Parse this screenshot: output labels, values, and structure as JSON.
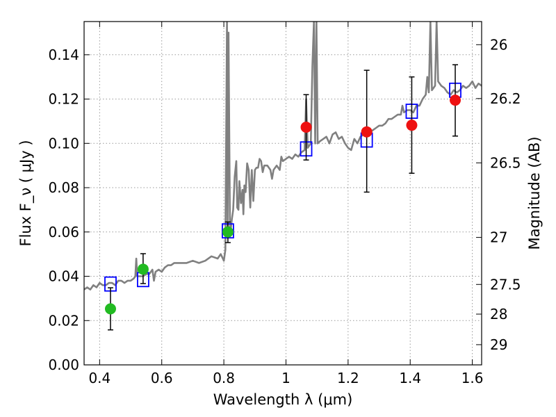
{
  "chart_data": {
    "type": "scatter",
    "xlabel": "Wavelength  λ (μm)",
    "ylabel": "Flux  F_ν  ( μJy )",
    "y2label": "Magnitude (AB)",
    "xlim": [
      0.35,
      1.63
    ],
    "ylim": [
      0.0,
      0.155
    ],
    "xticks": [
      "0.4",
      "0.6",
      "0.8",
      "1",
      "1.2",
      "1.4",
      "1.6"
    ],
    "xtick_values": [
      0.4,
      0.6,
      0.8,
      1.0,
      1.2,
      1.4,
      1.6
    ],
    "yticks": [
      "0.00",
      "0.02",
      "0.04",
      "0.06",
      "0.08",
      "0.10",
      "0.12",
      "0.14"
    ],
    "ytick_values": [
      0.0,
      0.02,
      0.04,
      0.06,
      0.08,
      0.1,
      0.12,
      0.14
    ],
    "y2ticks": [
      {
        "label": "26",
        "mag": 26.0
      },
      {
        "label": "26.2",
        "mag": 26.2
      },
      {
        "label": "26.5",
        "mag": 26.5
      },
      {
        "label": "27",
        "mag": 27.0
      },
      {
        "label": "27.5",
        "mag": 27.5
      },
      {
        "label": "28",
        "mag": 28.0
      },
      {
        "label": "29",
        "mag": 29.0
      }
    ],
    "grid": true,
    "colors": {
      "spectrum": "#808080",
      "model_boxes": "#0000ff",
      "green_points": "#22bb22",
      "red_points": "#ee1111",
      "error_bars": "#000000",
      "grid": "#999999"
    },
    "series": [
      {
        "kind": "line",
        "points": [
          [
            0.35,
            0.034
          ],
          [
            0.36,
            0.035
          ],
          [
            0.37,
            0.034
          ],
          [
            0.38,
            0.036
          ],
          [
            0.39,
            0.035
          ],
          [
            0.4,
            0.037
          ],
          [
            0.41,
            0.036
          ],
          [
            0.42,
            0.036
          ],
          [
            0.43,
            0.037
          ],
          [
            0.44,
            0.037
          ],
          [
            0.45,
            0.036
          ],
          [
            0.46,
            0.038
          ],
          [
            0.47,
            0.038
          ],
          [
            0.48,
            0.037
          ],
          [
            0.49,
            0.038
          ],
          [
            0.5,
            0.038
          ],
          [
            0.51,
            0.039
          ],
          [
            0.515,
            0.04
          ],
          [
            0.518,
            0.048
          ],
          [
            0.521,
            0.04
          ],
          [
            0.53,
            0.04
          ],
          [
            0.54,
            0.04
          ],
          [
            0.55,
            0.041
          ],
          [
            0.56,
            0.041
          ],
          [
            0.57,
            0.043
          ],
          [
            0.575,
            0.038
          ],
          [
            0.58,
            0.042
          ],
          [
            0.59,
            0.043
          ],
          [
            0.6,
            0.042
          ],
          [
            0.61,
            0.044
          ],
          [
            0.62,
            0.045
          ],
          [
            0.63,
            0.045
          ],
          [
            0.64,
            0.046
          ],
          [
            0.66,
            0.046
          ],
          [
            0.68,
            0.046
          ],
          [
            0.7,
            0.047
          ],
          [
            0.72,
            0.046
          ],
          [
            0.74,
            0.047
          ],
          [
            0.76,
            0.049
          ],
          [
            0.78,
            0.048
          ],
          [
            0.79,
            0.05
          ],
          [
            0.8,
            0.047
          ],
          [
            0.805,
            0.052
          ],
          [
            0.81,
            0.155
          ],
          [
            0.812,
            0.06
          ],
          [
            0.815,
            0.15
          ],
          [
            0.82,
            0.058
          ],
          [
            0.826,
            0.066
          ],
          [
            0.83,
            0.07
          ],
          [
            0.835,
            0.085
          ],
          [
            0.84,
            0.092
          ],
          [
            0.843,
            0.071
          ],
          [
            0.847,
            0.07
          ],
          [
            0.85,
            0.083
          ],
          [
            0.855,
            0.073
          ],
          [
            0.86,
            0.079
          ],
          [
            0.863,
            0.068
          ],
          [
            0.866,
            0.081
          ],
          [
            0.87,
            0.078
          ],
          [
            0.875,
            0.091
          ],
          [
            0.88,
            0.088
          ],
          [
            0.885,
            0.071
          ],
          [
            0.89,
            0.088
          ],
          [
            0.895,
            0.074
          ],
          [
            0.9,
            0.088
          ],
          [
            0.905,
            0.089
          ],
          [
            0.91,
            0.089
          ],
          [
            0.915,
            0.093
          ],
          [
            0.92,
            0.092
          ],
          [
            0.925,
            0.087
          ],
          [
            0.93,
            0.09
          ],
          [
            0.94,
            0.09
          ],
          [
            0.95,
            0.088
          ],
          [
            0.955,
            0.084
          ],
          [
            0.96,
            0.088
          ],
          [
            0.97,
            0.09
          ],
          [
            0.98,
            0.088
          ],
          [
            0.985,
            0.094
          ],
          [
            0.99,
            0.092
          ],
          [
            1.0,
            0.093
          ],
          [
            1.01,
            0.094
          ],
          [
            1.02,
            0.093
          ],
          [
            1.03,
            0.095
          ],
          [
            1.04,
            0.094
          ],
          [
            1.05,
            0.096
          ],
          [
            1.06,
            0.097
          ],
          [
            1.065,
            0.12
          ],
          [
            1.07,
            0.098
          ],
          [
            1.08,
            0.1
          ],
          [
            1.085,
            0.135
          ],
          [
            1.09,
            0.155
          ],
          [
            1.094,
            0.1
          ],
          [
            1.098,
            0.155
          ],
          [
            1.102,
            0.1
          ],
          [
            1.11,
            0.101
          ],
          [
            1.12,
            0.102
          ],
          [
            1.13,
            0.103
          ],
          [
            1.14,
            0.1
          ],
          [
            1.15,
            0.104
          ],
          [
            1.16,
            0.105
          ],
          [
            1.17,
            0.102
          ],
          [
            1.18,
            0.103
          ],
          [
            1.19,
            0.1
          ],
          [
            1.2,
            0.098
          ],
          [
            1.21,
            0.097
          ],
          [
            1.22,
            0.102
          ],
          [
            1.23,
            0.1
          ],
          [
            1.24,
            0.103
          ],
          [
            1.25,
            0.104
          ],
          [
            1.26,
            0.104
          ],
          [
            1.27,
            0.105
          ],
          [
            1.28,
            0.106
          ],
          [
            1.29,
            0.107
          ],
          [
            1.3,
            0.108
          ],
          [
            1.31,
            0.108
          ],
          [
            1.32,
            0.109
          ],
          [
            1.33,
            0.111
          ],
          [
            1.34,
            0.111
          ],
          [
            1.35,
            0.112
          ],
          [
            1.36,
            0.113
          ],
          [
            1.37,
            0.113
          ],
          [
            1.375,
            0.117
          ],
          [
            1.38,
            0.114
          ],
          [
            1.39,
            0.115
          ],
          [
            1.4,
            0.115
          ],
          [
            1.41,
            0.114
          ],
          [
            1.42,
            0.117
          ],
          [
            1.43,
            0.117
          ],
          [
            1.44,
            0.12
          ],
          [
            1.45,
            0.122
          ],
          [
            1.455,
            0.13
          ],
          [
            1.46,
            0.123
          ],
          [
            1.465,
            0.155
          ],
          [
            1.47,
            0.124
          ],
          [
            1.48,
            0.126
          ],
          [
            1.485,
            0.155
          ],
          [
            1.49,
            0.128
          ],
          [
            1.5,
            0.126
          ],
          [
            1.51,
            0.125
          ],
          [
            1.52,
            0.123
          ],
          [
            1.53,
            0.122
          ],
          [
            1.54,
            0.124
          ],
          [
            1.55,
            0.123
          ],
          [
            1.56,
            0.124
          ],
          [
            1.57,
            0.126
          ],
          [
            1.58,
            0.125
          ],
          [
            1.59,
            0.126
          ],
          [
            1.6,
            0.128
          ],
          [
            1.61,
            0.125
          ],
          [
            1.62,
            0.127
          ],
          [
            1.63,
            0.126
          ]
        ]
      },
      {
        "kind": "box-markers",
        "points": [
          [
            0.435,
            0.0365
          ],
          [
            0.54,
            0.0385
          ],
          [
            0.813,
            0.0605
          ],
          [
            1.065,
            0.0975
          ],
          [
            1.26,
            0.1015
          ],
          [
            1.405,
            0.1145
          ],
          [
            1.545,
            0.124
          ]
        ]
      },
      {
        "kind": "circle-markers",
        "color": "green",
        "points": [
          {
            "x": 0.435,
            "y": 0.0253,
            "yerr_low": 0.0158,
            "yerr_high": 0.0348
          },
          {
            "x": 0.54,
            "y": 0.0432,
            "yerr_low": 0.0367,
            "yerr_high": 0.0502
          },
          {
            "x": 0.813,
            "y": 0.06,
            "yerr_low": 0.0552,
            "yerr_high": 0.0645
          }
        ]
      },
      {
        "kind": "circle-markers",
        "color": "red",
        "points": [
          {
            "x": 1.065,
            "y": 0.1073,
            "yerr_low": 0.0925,
            "yerr_high": 0.122
          },
          {
            "x": 1.26,
            "y": 0.1052,
            "yerr_low": 0.078,
            "yerr_high": 0.133
          },
          {
            "x": 1.405,
            "y": 0.1082,
            "yerr_low": 0.0865,
            "yerr_high": 0.13
          },
          {
            "x": 1.545,
            "y": 0.1195,
            "yerr_low": 0.1033,
            "yerr_high": 0.1355
          }
        ]
      }
    ]
  }
}
